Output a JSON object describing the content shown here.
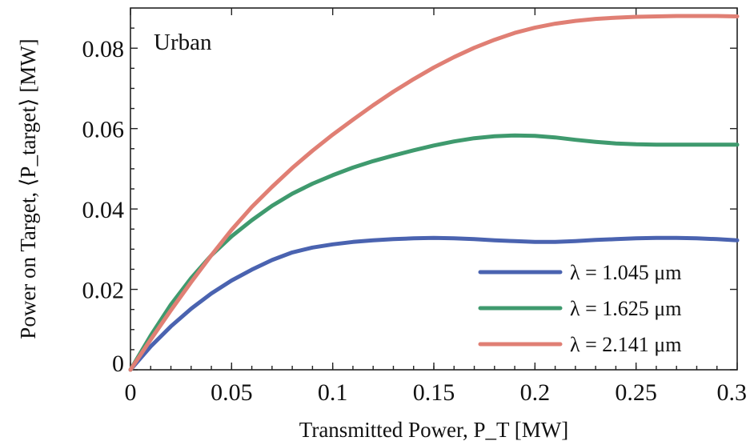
{
  "chart_data": {
    "type": "line",
    "annotation": "Urban",
    "xlabel": "Transmitted Power, P_T [MW]",
    "ylabel": "Power on Target, ⟨P_target⟩ [MW]",
    "xlim": [
      0,
      0.3
    ],
    "ylim": [
      0,
      0.09
    ],
    "x_ticks": [
      0,
      0.05,
      0.1,
      0.15,
      0.2,
      0.25,
      0.3
    ],
    "x_tick_labels": [
      "0",
      "0.05",
      "0.1",
      "0.15",
      "0.2",
      "0.25",
      "0.3"
    ],
    "y_ticks": [
      0,
      0.02,
      0.04,
      0.06,
      0.08
    ],
    "y_tick_labels": [
      "0",
      "0.02",
      "0.04",
      "0.06",
      "0.08"
    ],
    "grid": false,
    "legend_position": "bottom-right",
    "series": [
      {
        "name": "λ = 1.045 μm",
        "color": "#4a63b0",
        "x": [
          0,
          0.01,
          0.02,
          0.03,
          0.04,
          0.05,
          0.06,
          0.07,
          0.08,
          0.09,
          0.1,
          0.11,
          0.12,
          0.13,
          0.14,
          0.15,
          0.16,
          0.17,
          0.18,
          0.19,
          0.2,
          0.21,
          0.22,
          0.23,
          0.24,
          0.25,
          0.26,
          0.27,
          0.28,
          0.29,
          0.3
        ],
        "y": [
          0,
          0.0058,
          0.0108,
          0.0152,
          0.019,
          0.0222,
          0.0249,
          0.0273,
          0.0292,
          0.0304,
          0.0312,
          0.0318,
          0.0322,
          0.0325,
          0.0327,
          0.0328,
          0.0327,
          0.0325,
          0.0322,
          0.032,
          0.0318,
          0.0318,
          0.032,
          0.0323,
          0.0325,
          0.0327,
          0.0328,
          0.0328,
          0.0327,
          0.0325,
          0.0322
        ]
      },
      {
        "name": "λ = 1.625 μm",
        "color": "#3f9a6e",
        "x": [
          0,
          0.01,
          0.02,
          0.03,
          0.04,
          0.05,
          0.06,
          0.07,
          0.08,
          0.09,
          0.1,
          0.11,
          0.12,
          0.13,
          0.14,
          0.15,
          0.16,
          0.17,
          0.18,
          0.19,
          0.2,
          0.21,
          0.22,
          0.23,
          0.24,
          0.25,
          0.26,
          0.27,
          0.28,
          0.29,
          0.3
        ],
        "y": [
          0,
          0.0085,
          0.0162,
          0.0228,
          0.0285,
          0.0332,
          0.0372,
          0.0408,
          0.0438,
          0.0463,
          0.0484,
          0.0503,
          0.0519,
          0.0533,
          0.0546,
          0.0558,
          0.0568,
          0.0576,
          0.0581,
          0.0583,
          0.0582,
          0.0578,
          0.0572,
          0.0567,
          0.0563,
          0.0561,
          0.056,
          0.056,
          0.056,
          0.056,
          0.056
        ]
      },
      {
        "name": "λ = 2.141 μm",
        "color": "#e07f74",
        "x": [
          0,
          0.01,
          0.02,
          0.03,
          0.04,
          0.05,
          0.06,
          0.07,
          0.08,
          0.09,
          0.1,
          0.11,
          0.12,
          0.13,
          0.14,
          0.15,
          0.16,
          0.17,
          0.18,
          0.19,
          0.2,
          0.21,
          0.22,
          0.23,
          0.24,
          0.25,
          0.26,
          0.27,
          0.28,
          0.29,
          0.3
        ],
        "y": [
          0,
          0.0075,
          0.0148,
          0.0218,
          0.0285,
          0.0348,
          0.0405,
          0.0455,
          0.0502,
          0.0545,
          0.0585,
          0.0622,
          0.0658,
          0.0692,
          0.0723,
          0.0752,
          0.0778,
          0.0801,
          0.0821,
          0.0838,
          0.0851,
          0.0861,
          0.0868,
          0.0873,
          0.0876,
          0.0878,
          0.0879,
          0.088,
          0.088,
          0.088,
          0.0879
        ]
      }
    ]
  }
}
